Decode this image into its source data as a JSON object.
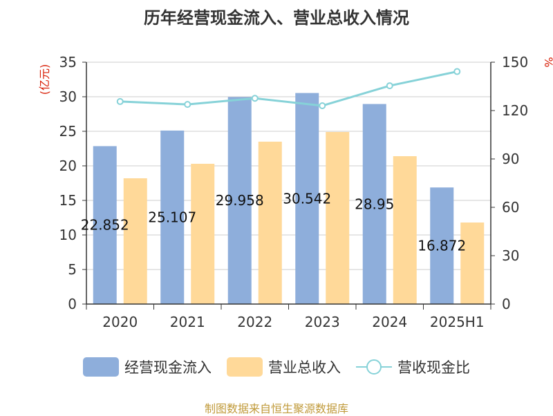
{
  "colors": {
    "cash_inflow": "#8eaedb",
    "revenue": "#ffd999",
    "ratio_line": "#86d2d8",
    "left_unit": "#d81e06",
    "right_unit": "#d81e06",
    "axis": "#333333",
    "grid": "#cccccc"
  },
  "legend": [
    {
      "label": "经营现金流入",
      "kind": "bar",
      "color": "#8eaedb"
    },
    {
      "label": "营业总收入",
      "kind": "bar",
      "color": "#ffd999"
    },
    {
      "label": "营收现金比",
      "kind": "line",
      "color": "#86d2d8"
    }
  ],
  "source_note": "制图数据来自恒生聚源数据库",
  "chart_data": {
    "type": "bar",
    "title": "历年经营现金流入、营业总收入情况",
    "categories": [
      "2020",
      "2021",
      "2022",
      "2023",
      "2024",
      "2025H1"
    ],
    "y_left": {
      "label": "(亿元)",
      "min": 0,
      "max": 35,
      "ticks": [
        0,
        5,
        10,
        15,
        20,
        25,
        30,
        35
      ]
    },
    "y_right": {
      "label": "%",
      "min": 0,
      "max": 150,
      "ticks": [
        0,
        30,
        60,
        90,
        120,
        150
      ]
    },
    "series": [
      {
        "name": "经营现金流入",
        "type": "bar",
        "axis": "left",
        "values": [
          22.852,
          25.107,
          29.958,
          30.542,
          28.95,
          16.872
        ],
        "labels": [
          "22.852",
          "25.107",
          "29.958",
          "30.542",
          "28.95",
          "16.872"
        ]
      },
      {
        "name": "营业总收入",
        "type": "bar",
        "axis": "left",
        "values": [
          18.2,
          20.3,
          23.5,
          24.9,
          21.4,
          11.8
        ]
      },
      {
        "name": "营收现金比",
        "type": "line",
        "axis": "right",
        "values": [
          125.6,
          123.8,
          127.6,
          123.0,
          135.4,
          144.2
        ]
      }
    ],
    "grid": true,
    "legend_position": "bottom"
  }
}
